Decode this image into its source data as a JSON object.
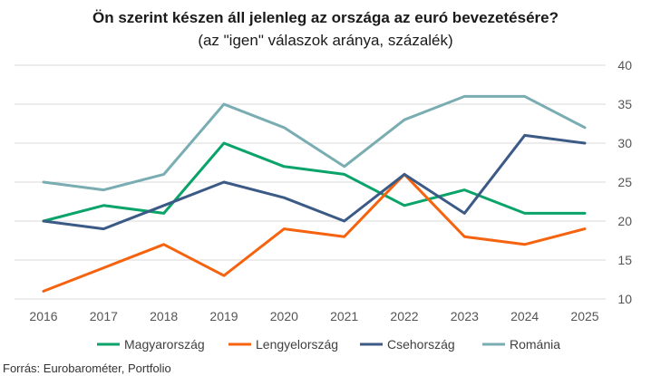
{
  "chart_data": {
    "type": "line",
    "title": "Ön szerint készen áll jelenleg az országa az euró bevezetésére?",
    "subtitle": "(az \"igen\" válaszok aránya, százalék)",
    "source": "Forrás: Eurobarométer, Portfolio",
    "xlabel": "",
    "ylabel": "",
    "categories": [
      "2016",
      "2017",
      "2018",
      "2019",
      "2020",
      "2021",
      "2022",
      "2023",
      "2024",
      "2025"
    ],
    "ylim": [
      10,
      40
    ],
    "yticks": [
      10,
      15,
      20,
      25,
      30,
      35,
      40
    ],
    "y_axis_side": "right",
    "grid": true,
    "legend_position": "bottom",
    "series": [
      {
        "name": "Magyarország",
        "color": "#0aa36a",
        "values": [
          20,
          22,
          21,
          30,
          27,
          26,
          22,
          24,
          21,
          21
        ]
      },
      {
        "name": "Lengyelország",
        "color": "#f5630f",
        "values": [
          11,
          14,
          17,
          13,
          19,
          18,
          26,
          18,
          17,
          19
        ]
      },
      {
        "name": "Csehország",
        "color": "#3c5a86",
        "values": [
          20,
          19,
          22,
          25,
          23,
          20,
          26,
          21,
          31,
          30
        ]
      },
      {
        "name": "Románia",
        "color": "#79adb2",
        "values": [
          25,
          24,
          26,
          35,
          32,
          27,
          33,
          36,
          36,
          32
        ]
      }
    ]
  }
}
